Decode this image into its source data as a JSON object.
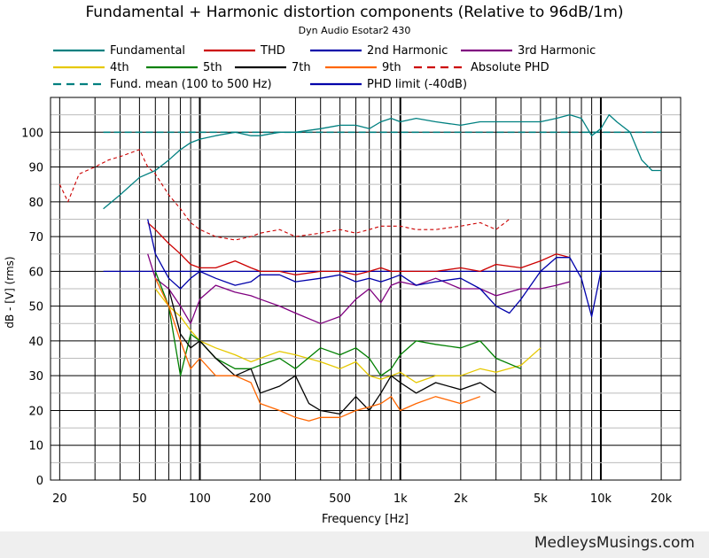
{
  "chart_data": {
    "type": "line",
    "title": "Fundamental + Harmonic distortion components (Relative to 96dB/1m)",
    "subtitle": "Dyn Audio Esotar2 430",
    "xlabel": "Frequency [Hz]",
    "ylabel": "dB - [V]  (rms)",
    "xscale": "log",
    "xlim": [
      18,
      25000
    ],
    "ylim": [
      0,
      110
    ],
    "grid": true,
    "x_ticks": [
      20,
      50,
      100,
      200,
      500,
      1000,
      2000,
      5000,
      10000,
      20000
    ],
    "x_tick_labels": [
      "20",
      "50",
      "100",
      "200",
      "500",
      "1k",
      "2k",
      "5k",
      "10k",
      "20k"
    ],
    "y_ticks": [
      0,
      10,
      20,
      30,
      40,
      50,
      60,
      70,
      80,
      90,
      100
    ],
    "y_tick_labels": [
      "0",
      "10",
      "20",
      "30",
      "40",
      "50",
      "60",
      "70",
      "80",
      "90",
      "100"
    ],
    "legend_position": "top",
    "series": [
      {
        "name": "Fundamental",
        "color": "#008080",
        "style": "solid",
        "x": [
          33,
          40,
          50,
          60,
          70,
          80,
          90,
          100,
          120,
          150,
          180,
          200,
          250,
          300,
          400,
          500,
          600,
          700,
          800,
          900,
          1000,
          1200,
          1500,
          2000,
          2500,
          3000,
          4000,
          5000,
          6000,
          7000,
          8000,
          9000,
          10000,
          11000,
          12000,
          14000,
          16000,
          18000,
          20000
        ],
        "y": [
          78,
          82,
          87,
          89,
          92,
          95,
          97,
          98,
          99,
          100,
          99,
          99,
          100,
          100,
          101,
          102,
          102,
          101,
          103,
          104,
          103,
          104,
          103,
          102,
          103,
          103,
          103,
          103,
          104,
          105,
          104,
          99,
          101,
          105,
          103,
          100,
          92,
          89,
          89
        ]
      },
      {
        "name": "THD",
        "color": "#cc0000",
        "style": "solid",
        "x": [
          55,
          60,
          70,
          80,
          90,
          100,
          120,
          150,
          180,
          200,
          250,
          300,
          400,
          500,
          600,
          700,
          800,
          900,
          1000,
          1200,
          1500,
          2000,
          2500,
          3000,
          4000,
          5000,
          6000,
          7000
        ],
        "y": [
          74,
          72,
          68,
          65,
          62,
          61,
          61,
          63,
          61,
          60,
          60,
          59,
          60,
          60,
          59,
          60,
          61,
          60,
          60,
          60,
          60,
          61,
          60,
          62,
          61,
          63,
          65,
          64
        ]
      },
      {
        "name": "2nd Harmonic",
        "color": "#0000aa",
        "style": "solid",
        "x": [
          55,
          60,
          70,
          80,
          90,
          100,
          120,
          150,
          180,
          200,
          250,
          300,
          400,
          500,
          600,
          700,
          800,
          900,
          1000,
          1200,
          1500,
          2000,
          2500,
          3000,
          3500,
          4000,
          5000,
          6000,
          7000,
          8000,
          9000,
          10000
        ],
        "y": [
          75,
          65,
          58,
          55,
          58,
          60,
          58,
          56,
          57,
          59,
          59,
          57,
          58,
          59,
          57,
          58,
          57,
          58,
          59,
          56,
          57,
          58,
          55,
          50,
          48,
          52,
          60,
          64,
          64,
          58,
          47,
          60
        ]
      },
      {
        "name": "3rd Harmonic",
        "color": "#800080",
        "style": "solid",
        "x": [
          55,
          60,
          70,
          80,
          90,
          100,
          120,
          150,
          180,
          200,
          250,
          300,
          400,
          500,
          600,
          700,
          800,
          900,
          1000,
          1200,
          1500,
          2000,
          2500,
          3000,
          4000,
          5000,
          6000,
          7000
        ],
        "y": [
          65,
          58,
          55,
          50,
          45,
          52,
          56,
          54,
          53,
          52,
          50,
          48,
          45,
          47,
          52,
          55,
          51,
          56,
          57,
          56,
          58,
          55,
          55,
          53,
          55,
          55,
          56,
          57
        ]
      },
      {
        "name": "4th",
        "color": "#e6c800",
        "style": "solid",
        "x": [
          60,
          70,
          80,
          90,
          100,
          120,
          150,
          180,
          200,
          250,
          300,
          400,
          500,
          600,
          700,
          800,
          900,
          1000,
          1200,
          1500,
          2000,
          2500,
          3000,
          4000,
          5000
        ],
        "y": [
          55,
          50,
          47,
          43,
          40,
          38,
          36,
          34,
          35,
          37,
          36,
          34,
          32,
          34,
          30,
          29,
          30,
          31,
          28,
          30,
          30,
          32,
          31,
          33,
          38
        ]
      },
      {
        "name": "5th",
        "color": "#008000",
        "style": "solid",
        "x": [
          60,
          70,
          80,
          90,
          100,
          120,
          150,
          180,
          200,
          250,
          300,
          400,
          500,
          600,
          700,
          800,
          900,
          1000,
          1200,
          1500,
          2000,
          2500,
          3000,
          4000
        ],
        "y": [
          60,
          50,
          30,
          42,
          40,
          35,
          32,
          32,
          33,
          35,
          32,
          38,
          36,
          38,
          35,
          30,
          32,
          36,
          40,
          39,
          38,
          40,
          35,
          32
        ]
      },
      {
        "name": "7th",
        "color": "#000000",
        "style": "solid",
        "x": [
          70,
          80,
          90,
          100,
          120,
          150,
          180,
          200,
          250,
          300,
          350,
          400,
          500,
          600,
          700,
          800,
          900,
          1000,
          1200,
          1500,
          2000,
          2500,
          3000
        ],
        "y": [
          55,
          42,
          38,
          40,
          35,
          30,
          32,
          25,
          27,
          30,
          22,
          20,
          19,
          24,
          20,
          25,
          30,
          28,
          25,
          28,
          26,
          28,
          25
        ]
      },
      {
        "name": "9th",
        "color": "#ff6600",
        "style": "solid",
        "x": [
          60,
          70,
          80,
          90,
          100,
          120,
          150,
          180,
          200,
          250,
          300,
          350,
          400,
          500,
          600,
          700,
          800,
          900,
          1000,
          1200,
          1500,
          2000,
          2500
        ],
        "y": [
          58,
          50,
          40,
          32,
          35,
          30,
          30,
          28,
          22,
          20,
          18,
          17,
          18,
          18,
          20,
          21,
          22,
          24,
          20,
          22,
          24,
          22,
          24
        ]
      },
      {
        "name": "Absolute PHD",
        "color": "#cc0000",
        "style": "dashed",
        "x": [
          20,
          22,
          25,
          30,
          35,
          40,
          50,
          55,
          60,
          70,
          80,
          90,
          100,
          120,
          150,
          180,
          200,
          250,
          300,
          400,
          500,
          600,
          700,
          800,
          1000,
          1200,
          1500,
          2000,
          2500,
          3000,
          3500
        ],
        "y": [
          85,
          80,
          88,
          90,
          92,
          93,
          95,
          90,
          88,
          82,
          78,
          74,
          72,
          70,
          69,
          70,
          71,
          72,
          70,
          71,
          72,
          71,
          72,
          73,
          73,
          72,
          72,
          73,
          74,
          72,
          75
        ]
      },
      {
        "name": "Fund. mean (100 to 500 Hz)",
        "color": "#008080",
        "style": "dashed",
        "x": [
          33,
          20000
        ],
        "y": [
          100,
          100
        ]
      },
      {
        "name": "PHD limit (-40dB)",
        "color": "#0000aa",
        "style": "solid",
        "x": [
          33,
          20000
        ],
        "y": [
          60,
          60
        ]
      }
    ]
  },
  "footer": {
    "watermark": "MedleysMusings.com"
  }
}
